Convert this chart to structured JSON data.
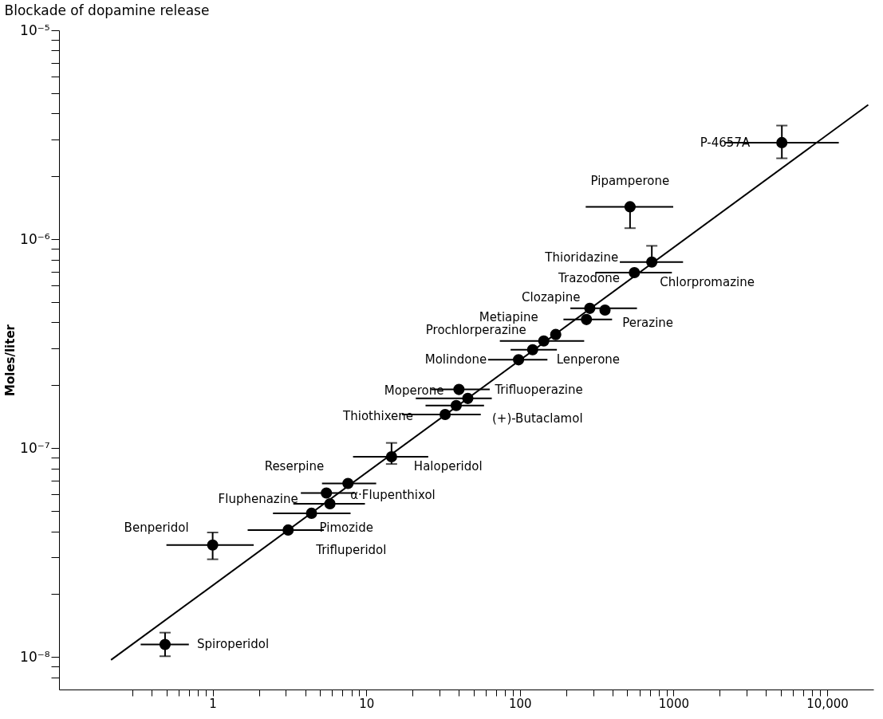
{
  "chart_data": {
    "type": "scatter",
    "title": "Blockade of dopamine release",
    "ylabel": "Moles/liter",
    "log": "xy",
    "grid": false,
    "xlim": [
      0.1,
      20000
    ],
    "ylim": [
      7e-09,
      1e-05
    ],
    "xticks": [
      {
        "value": 0.3,
        "label": null
      },
      {
        "value": 0.4,
        "label": null
      },
      {
        "value": 0.5,
        "label": null
      },
      {
        "value": 0.6,
        "label": null
      },
      {
        "value": 0.7,
        "label": null
      },
      {
        "value": 0.8,
        "label": null
      },
      {
        "value": 0.9,
        "label": null
      },
      1,
      {
        "value": 2,
        "label": null
      },
      {
        "value": 3,
        "label": null
      },
      {
        "value": 4,
        "label": null
      },
      {
        "value": 5,
        "label": null
      },
      {
        "value": 6,
        "label": null
      },
      {
        "value": 7,
        "label": null
      },
      {
        "value": 8,
        "label": null
      },
      {
        "value": 9,
        "label": null
      },
      10,
      {
        "value": 20,
        "label": null
      },
      {
        "value": 30,
        "label": null
      },
      {
        "value": 40,
        "label": null
      },
      {
        "value": 50,
        "label": null
      },
      {
        "value": 60,
        "label": null
      },
      {
        "value": 70,
        "label": null
      },
      {
        "value": 80,
        "label": null
      },
      {
        "value": 90,
        "label": null
      },
      100,
      {
        "value": 200,
        "label": null
      },
      {
        "value": 300,
        "label": null
      },
      {
        "value": 400,
        "label": null
      },
      {
        "value": 500,
        "label": null
      },
      {
        "value": 600,
        "label": null
      },
      {
        "value": 700,
        "label": null
      },
      {
        "value": 800,
        "label": null
      },
      {
        "value": 900,
        "label": null
      },
      1000,
      {
        "value": 2000,
        "label": null
      },
      {
        "value": 3000,
        "label": null
      },
      {
        "value": 4000,
        "label": null
      },
      {
        "value": 5000,
        "label": null
      },
      {
        "value": 6000,
        "label": null
      },
      {
        "value": 7000,
        "label": null
      },
      {
        "value": 8000,
        "label": null
      },
      {
        "value": 9000,
        "label": null
      },
      {
        "value": 10000,
        "label": "10,000"
      }
    ],
    "yticks": [
      {
        "value": 8e-09,
        "label": null
      },
      {
        "value": 9e-09,
        "label": null
      },
      {
        "value": 1e-08,
        "label": "10⁻⁸"
      },
      {
        "value": 2e-08,
        "label": null
      },
      {
        "value": 3e-08,
        "label": null
      },
      {
        "value": 4e-08,
        "label": null
      },
      {
        "value": 5e-08,
        "label": null
      },
      {
        "value": 6e-08,
        "label": null
      },
      {
        "value": 7e-08,
        "label": null
      },
      {
        "value": 8e-08,
        "label": null
      },
      {
        "value": 9e-08,
        "label": null
      },
      {
        "value": 1e-07,
        "label": "10⁻⁷"
      },
      {
        "value": 2e-07,
        "label": null
      },
      {
        "value": 3e-07,
        "label": null
      },
      {
        "value": 4e-07,
        "label": null
      },
      {
        "value": 5e-07,
        "label": null
      },
      {
        "value": 6e-07,
        "label": null
      },
      {
        "value": 7e-07,
        "label": null
      },
      {
        "value": 8e-07,
        "label": null
      },
      {
        "value": 9e-07,
        "label": null
      },
      {
        "value": 1e-06,
        "label": "10⁻⁶"
      },
      {
        "value": 2e-06,
        "label": null
      },
      {
        "value": 3e-06,
        "label": null
      },
      {
        "value": 4e-06,
        "label": null
      },
      {
        "value": 5e-06,
        "label": null
      },
      {
        "value": 6e-06,
        "label": null
      },
      {
        "value": 7e-06,
        "label": null
      },
      {
        "value": 8e-06,
        "label": null
      },
      {
        "value": 9e-06,
        "label": null
      },
      {
        "value": 1e-05,
        "label": "10⁻⁵"
      }
    ],
    "series": [
      {
        "type": "scatter",
        "marker": "circle",
        "color": "#000000",
        "x": [
          0.49,
          1.0,
          3.1,
          4.4,
          5.8,
          5.5,
          7.6,
          14.6,
          32.6,
          38.5,
          45.8,
          40.1,
          98,
          121,
          143,
          171,
          271,
          285,
          358,
          556,
          722,
          521,
          5070
        ],
        "values": [
          1.15e-08,
          3.44e-08,
          4.06e-08,
          4.88e-08,
          5.42e-08,
          6.1e-08,
          6.78e-08,
          9.1e-08,
          1.45e-07,
          1.6e-07,
          1.73e-07,
          1.91e-07,
          2.65e-07,
          2.96e-07,
          3.26e-07,
          3.5e-07,
          4.13e-07,
          4.67e-07,
          4.58e-07,
          6.92e-07,
          7.78e-07,
          1.43e-06,
          2.9e-06
        ],
        "errors": [
          [
            1.01e-08,
            1.31e-08
          ],
          [
            2.94e-08,
            3.95e-08
          ],
          null,
          null,
          null,
          null,
          null,
          [
            8.4e-08,
            1.06e-07
          ],
          null,
          null,
          null,
          null,
          null,
          null,
          null,
          null,
          null,
          null,
          null,
          null,
          [
            7.78e-07,
            9.3e-07
          ],
          [
            1.13e-06,
            1.43e-06
          ],
          [
            2.44e-06,
            3.5e-06
          ]
        ],
        "xerrors": [
          [
            0.34,
            0.7
          ],
          [
            0.5,
            1.85
          ],
          [
            1.69,
            5.3
          ],
          [
            2.47,
            7.9
          ],
          [
            3.35,
            9.8
          ],
          [
            3.75,
            8.4
          ],
          [
            5.15,
            11.6
          ],
          [
            8.2,
            25.3
          ],
          [
            17.1,
            55.6
          ],
          [
            24.3,
            58.4
          ],
          [
            21,
            65.6
          ],
          [
            26.5,
            63.6
          ],
          [
            62,
            151
          ],
          [
            87,
            174
          ],
          [
            74,
            262
          ],
          null,
          [
            192,
            398
          ],
          [
            213,
            578
          ],
          null,
          [
            310,
            975
          ],
          [
            447,
            1153
          ],
          [
            268,
            995
          ],
          [
            2150,
            11900
          ]
        ]
      },
      {
        "type": "line",
        "marker": "none",
        "color": "#000000",
        "x": [
          0.218,
          18500
        ],
        "values": [
          9.7e-09,
          4.4e-06
        ]
      }
    ],
    "annotations": [
      {
        "text": "Spiroperidol",
        "x": 0.49,
        "y": 1.15e-08
      },
      {
        "text": "Benperidol",
        "x": 1.0,
        "y": 3.44e-08
      },
      {
        "text": "Trifluperidol",
        "x": 3.1,
        "y": 4.06e-08
      },
      {
        "text": "Pimozide",
        "x": 4.4,
        "y": 4.88e-08
      },
      {
        "text": "Fluphenazine",
        "x": 5.8,
        "y": 5.42e-08
      },
      {
        "text": "α·Flupenthixol",
        "x": 5.5,
        "y": 6.1e-08
      },
      {
        "text": "Reserpine",
        "x": 7.6,
        "y": 6.78e-08
      },
      {
        "text": "Haloperidol",
        "x": 14.6,
        "y": 9.1e-08
      },
      {
        "text": "Thiothixene",
        "x": 32.6,
        "y": 1.45e-07
      },
      {
        "text": "(+)-Butaclamol",
        "x": 38.5,
        "y": 1.6e-07
      },
      {
        "text": "Moperone",
        "x": 45.8,
        "y": 1.73e-07
      },
      {
        "text": "Trifluoperazine",
        "x": 40.1,
        "y": 1.91e-07
      },
      {
        "text": "Molindone",
        "x": 98,
        "y": 2.65e-07
      },
      {
        "text": "Lenperone",
        "x": 121,
        "y": 2.96e-07
      },
      {
        "text": "Prochlorperazine",
        "x": 143,
        "y": 3.26e-07
      },
      {
        "text": "Metiapine",
        "x": 171,
        "y": 3.5e-07
      },
      {
        "text": "Perazine",
        "x": 271,
        "y": 4.13e-07
      },
      {
        "text": "Clozapine",
        "x": 285,
        "y": 4.67e-07
      },
      {
        "text": "Trazodone",
        "x": 358,
        "y": 4.58e-07
      },
      {
        "text": "Chlorpromazine",
        "x": 556,
        "y": 6.92e-07
      },
      {
        "text": "Thioridazine",
        "x": 722,
        "y": 7.78e-07
      },
      {
        "text": "Pipamperone",
        "x": 521,
        "y": 1.43e-06
      },
      {
        "text": "P-4657A",
        "x": 5070,
        "y": 2.9e-06
      }
    ]
  }
}
